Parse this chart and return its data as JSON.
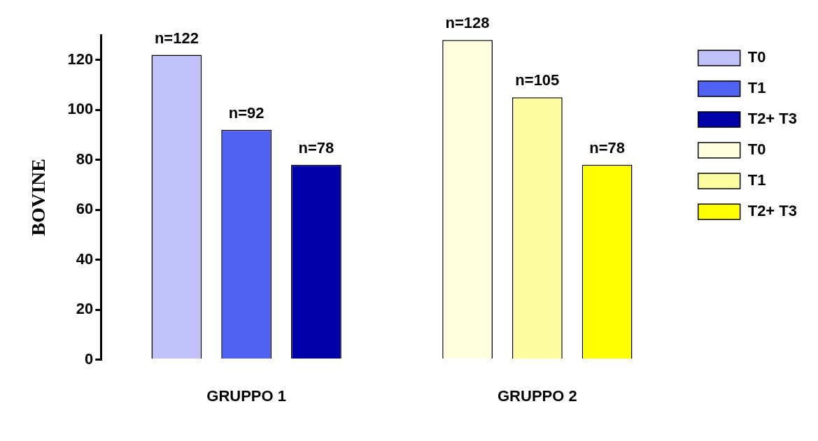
{
  "chart_data": {
    "type": "bar",
    "ylabel": "BOVINE",
    "categories": [
      "GRUPPO 1",
      "GRUPPO 2"
    ],
    "series": [
      {
        "name": "T0",
        "color": "#c0c0fa",
        "values": [
          122,
          null
        ],
        "value_labels": [
          "n=122",
          null
        ]
      },
      {
        "name": "T1",
        "color": "#5060f0",
        "values": [
          92,
          null
        ],
        "value_labels": [
          "n=92",
          null
        ]
      },
      {
        "name": "T2+ T3",
        "color": "#0000a8",
        "values": [
          78,
          null
        ],
        "value_labels": [
          "n=78",
          null
        ]
      },
      {
        "name": "T0",
        "color": "#ffffe0",
        "values": [
          null,
          128
        ],
        "value_labels": [
          null,
          "n=128"
        ]
      },
      {
        "name": "T1",
        "color": "#fcfca0",
        "values": [
          null,
          105
        ],
        "value_labels": [
          null,
          "n=105"
        ]
      },
      {
        "name": "T2+ T3",
        "color": "#ffff00",
        "values": [
          null,
          78
        ],
        "value_labels": [
          null,
          "n=78"
        ]
      }
    ],
    "ylim": [
      0,
      130
    ],
    "yticks": [
      0,
      20,
      40,
      60,
      80,
      100,
      120
    ],
    "grid": false,
    "legend": "right"
  }
}
